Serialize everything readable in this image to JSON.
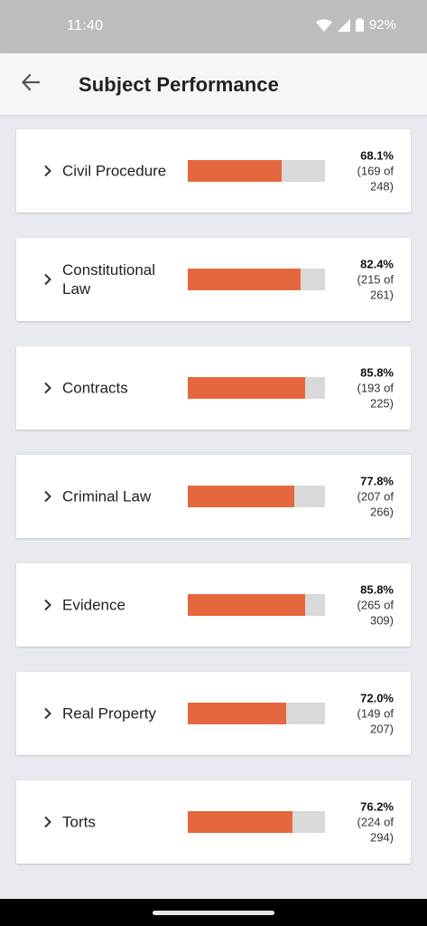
{
  "status_bar": {
    "time": "11:40",
    "battery": "92%",
    "icons": [
      "wifi-icon",
      "signal-icon",
      "battery-icon"
    ]
  },
  "header": {
    "back_icon": "arrow-left-icon",
    "title": "Subject Performance"
  },
  "colors": {
    "bar_fill": "#e5673e",
    "bar_track": "#d9d9d9",
    "background": "#e7ebef"
  },
  "subjects": [
    {
      "name": "Civil Procedure",
      "percent": "68.1%",
      "count": "(169 of 248)",
      "progress": 0.681
    },
    {
      "name": "Constitutional Law",
      "percent": "82.4%",
      "count": "(215 of 261)",
      "progress": 0.824
    },
    {
      "name": "Contracts",
      "percent": "85.8%",
      "count": "(193 of 225)",
      "progress": 0.858
    },
    {
      "name": "Criminal Law",
      "percent": "77.8%",
      "count": "(207 of 266)",
      "progress": 0.778
    },
    {
      "name": "Evidence",
      "percent": "85.8%",
      "count": "(265 of 309)",
      "progress": 0.858
    },
    {
      "name": "Real Property",
      "percent": "72.0%",
      "count": "(149 of 207)",
      "progress": 0.72
    },
    {
      "name": "Torts",
      "percent": "76.2%",
      "count": "(224 of 294)",
      "progress": 0.762
    }
  ]
}
